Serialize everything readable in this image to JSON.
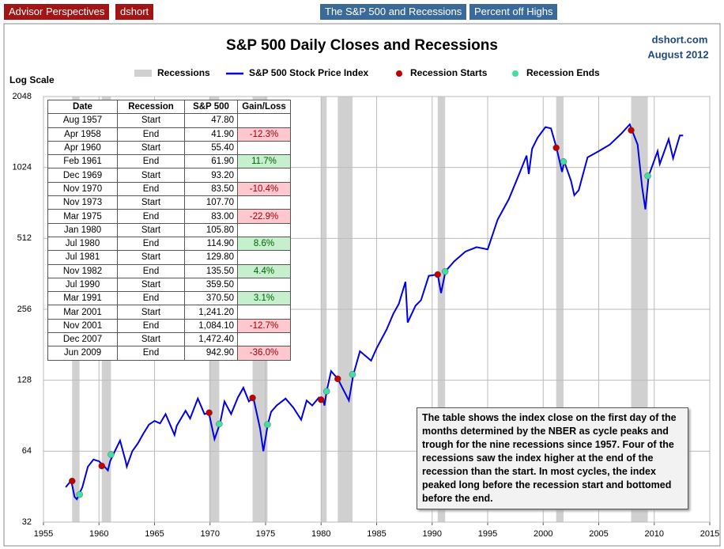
{
  "header": {
    "buttons": [
      "Advisor Perspectives",
      "dshort",
      "The S&P 500 and Recessions",
      "Percent off Highs"
    ]
  },
  "chart_data": {
    "type": "line",
    "title": "S&P 500 Daily Closes and Recessions",
    "source": "dshort.com",
    "date": "August 2012",
    "y_label": "Log Scale",
    "log_scale": true,
    "grid": true,
    "xlim": [
      1955,
      2015
    ],
    "xticks": [
      1955,
      1960,
      1965,
      1970,
      1975,
      1980,
      1985,
      1990,
      1995,
      2000,
      2005,
      2010,
      2015
    ],
    "ylim": [
      32,
      2048
    ],
    "yticks": [
      32,
      64,
      128,
      256,
      512,
      1024,
      2048
    ],
    "recession_band": {
      "name": "Recessions",
      "color": "#d0d0d0"
    },
    "series": [
      {
        "name": "S&P 500 Stock Price Index",
        "color": "#0000e0",
        "x": [
          1957.0,
          1957.5,
          1957.8,
          1958.0,
          1958.5,
          1959.0,
          1959.5,
          1960.0,
          1960.5,
          1960.8,
          1961.0,
          1961.5,
          1961.9,
          1962.4,
          1962.5,
          1963.0,
          1963.5,
          1964.0,
          1964.5,
          1965.0,
          1965.5,
          1966.0,
          1966.8,
          1967.0,
          1967.8,
          1968.2,
          1968.9,
          1969.5,
          1969.9,
          1970.4,
          1970.9,
          1971.3,
          1971.9,
          1972.5,
          1973.0,
          1973.5,
          1973.9,
          1974.5,
          1974.8,
          1975.2,
          1975.5,
          1976.0,
          1976.8,
          1977.5,
          1978.2,
          1978.7,
          1979.2,
          1979.8,
          1980.2,
          1980.3,
          1980.5,
          1980.9,
          1981.5,
          1982.5,
          1982.9,
          1983.5,
          1984.5,
          1985.0,
          1985.9,
          1986.5,
          1987.0,
          1987.6,
          1987.8,
          1988.5,
          1989.0,
          1989.7,
          1990.5,
          1990.8,
          1991.2,
          1992.0,
          1993.0,
          1994.0,
          1995.0,
          1995.9,
          1996.9,
          1997.8,
          1998.5,
          1998.7,
          1999.0,
          1999.5,
          2000.2,
          2000.7,
          2001.2,
          2001.7,
          2001.9,
          2002.5,
          2002.8,
          2003.2,
          2004.0,
          2005.0,
          2006.0,
          2007.0,
          2007.8,
          2008.0,
          2008.5,
          2008.9,
          2009.2,
          2009.5,
          2010.3,
          2010.5,
          2011.3,
          2011.7,
          2012.3,
          2012.6
        ],
        "values": [
          45,
          48,
          41,
          40,
          45,
          55,
          59,
          58,
          55,
          53,
          58,
          65,
          71,
          58,
          55,
          64,
          69,
          76,
          83,
          86,
          84,
          92,
          75,
          82,
          95,
          88,
          107,
          92,
          93,
          72,
          84,
          104,
          92,
          108,
          119,
          104,
          108,
          80,
          64,
          83,
          94,
          100,
          107,
          98,
          87,
          105,
          100,
          108,
          105,
          100,
          115,
          140,
          130,
          105,
          135,
          170,
          155,
          175,
          210,
          245,
          270,
          335,
          225,
          265,
          280,
          355,
          360,
          300,
          371,
          410,
          450,
          470,
          460,
          615,
          750,
          950,
          1150,
          960,
          1230,
          1370,
          1520,
          1500,
          1240,
          980,
          1084,
          900,
          780,
          820,
          1130,
          1200,
          1280,
          1420,
          1560,
          1472,
          1280,
          850,
          680,
          943,
          1200,
          1060,
          1350,
          1120,
          1400,
          1400
        ]
      }
    ],
    "markers": [
      {
        "name": "Recession Starts",
        "color": "#c00000",
        "x": [
          1957.58,
          1960.25,
          1969.92,
          1973.83,
          1980.0,
          1981.5,
          1990.5,
          2001.17,
          2007.92
        ],
        "values": [
          47.8,
          55.4,
          93.2,
          107.7,
          105.8,
          129.8,
          359.5,
          1241.2,
          1472.4
        ]
      },
      {
        "name": "Recession Ends",
        "color": "#40e0a0",
        "x": [
          1958.25,
          1961.08,
          1970.83,
          1975.17,
          1980.5,
          1982.83,
          1991.17,
          2001.83,
          2009.42
        ],
        "values": [
          41.9,
          61.9,
          83.5,
          83.0,
          114.9,
          135.5,
          370.5,
          1084.1,
          942.9
        ]
      }
    ],
    "table": {
      "columns": [
        "Date",
        "Recession",
        "S&P 500",
        "Gain/Loss"
      ],
      "rows": [
        [
          "Aug 1957",
          "Start",
          "47.80",
          null
        ],
        [
          "Apr 1958",
          "End",
          "41.90",
          "-12.3%"
        ],
        [
          "Apr 1960",
          "Start",
          "55.40",
          null
        ],
        [
          "Feb 1961",
          "End",
          "61.90",
          "11.7%"
        ],
        [
          "Dec 1969",
          "Start",
          "93.20",
          null
        ],
        [
          "Nov 1970",
          "End",
          "83.50",
          "-10.4%"
        ],
        [
          "Nov 1973",
          "Start",
          "107.70",
          null
        ],
        [
          "Mar 1975",
          "End",
          "83.00",
          "-22.9%"
        ],
        [
          "Jan 1980",
          "Start",
          "105.80",
          null
        ],
        [
          "Jul 1980",
          "End",
          "114.90",
          "8.6%"
        ],
        [
          "Jul 1981",
          "Start",
          "129.80",
          null
        ],
        [
          "Nov 1982",
          "End",
          "135.50",
          "4.4%"
        ],
        [
          "Jul 1990",
          "Start",
          "359.50",
          null
        ],
        [
          "Mar 1991",
          "End",
          "370.50",
          "3.1%"
        ],
        [
          "Mar 2001",
          "Start",
          "1,241.20",
          null
        ],
        [
          "Nov 2001",
          "End",
          "1,084.10",
          "-12.7%"
        ],
        [
          "Dec 2007",
          "Start",
          "1,472.40",
          null
        ],
        [
          "Jun 2009",
          "End",
          "942.90",
          "-36.0%"
        ]
      ]
    },
    "annotation": "The table shows the index close on the first day of the months determined by the NBER as cycle peaks and trough for the nine recessions since 1957.  Four of the recessions saw the index higher at the end of the recession than the start. In most cycles, the index peaked long before the recession start and bottomed before the end."
  }
}
